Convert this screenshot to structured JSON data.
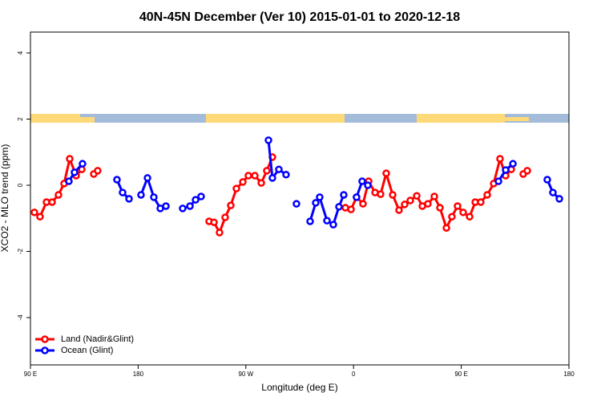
{
  "chart_data": {
    "type": "line",
    "title": "40N-45N December (Ver 10)   2015-01-01 to 2020-12-18",
    "x_label": "Longitude (deg E)",
    "y_label": "XCO2 - MLO trend (ppm)",
    "xlim": [
      90,
      540
    ],
    "ylim": [
      -5.43,
      4.63
    ],
    "xticks": [
      {
        "value": 90,
        "label": "90 E"
      },
      {
        "value": 180,
        "label": "180"
      },
      {
        "value": 270,
        "label": "90 W"
      },
      {
        "value": 360,
        "label": "0"
      },
      {
        "value": 450,
        "label": "90 E"
      },
      {
        "value": 540,
        "label": "180"
      }
    ],
    "yticks": [
      -4,
      -2,
      0,
      2,
      4
    ],
    "legend": "bottom-left",
    "series": [
      {
        "name": "Land (Nadir&Glint)",
        "color": "#ff0000",
        "x": [
          93.3,
          98.0,
          103.4,
          108.1,
          113.4,
          118.1,
          122.8,
          128.2,
          132.9,
          null,
          142.9,
          146.2,
          null,
          239.3,
          243.4,
          248.0,
          252.7,
          257.4,
          262.1,
          267.5,
          272.1,
          277.5,
          282.9,
          287.5,
          292.2,
          null,
          353.2,
          357.9,
          362.5,
          367.9,
          372.6,
          378.0,
          382.6,
          387.3,
          392.7,
          398.0,
          402.7,
          407.4,
          412.8,
          417.5,
          422.1,
          427.5,
          432.2,
          437.6,
          442.2,
          446.9,
          451.6,
          457.0,
          461.7,
          466.3,
          471.7,
          477.1,
          482.4,
          487.1,
          491.8,
          null,
          501.8,
          505.2
        ],
        "values": [
          -0.82,
          -0.95,
          -0.51,
          -0.51,
          -0.29,
          0.05,
          0.8,
          0.29,
          0.48,
          null,
          0.34,
          0.44,
          null,
          -1.09,
          -1.12,
          -1.43,
          -0.97,
          -0.61,
          -0.1,
          0.1,
          0.29,
          0.29,
          0.07,
          0.44,
          0.85,
          null,
          -0.68,
          -0.73,
          -0.36,
          -0.56,
          0.12,
          -0.22,
          -0.27,
          0.36,
          -0.29,
          -0.75,
          -0.58,
          -0.46,
          -0.32,
          -0.63,
          -0.56,
          -0.34,
          -0.68,
          -1.29,
          -0.95,
          -0.63,
          -0.82,
          -0.95,
          -0.51,
          -0.51,
          -0.29,
          0.05,
          0.8,
          0.29,
          0.48,
          null,
          0.34,
          0.44
        ]
      },
      {
        "name": "Ocean (Glint)",
        "color": "#0000ff",
        "x": [
          122.1,
          126.8,
          133.5,
          null,
          162.3,
          167.0,
          172.4,
          null,
          182.4,
          187.8,
          193.1,
          198.5,
          203.2,
          null,
          217.2,
          223.3,
          228.0,
          232.6,
          null,
          288.9,
          292.2,
          297.6,
          303.6,
          null,
          312.3,
          null,
          323.7,
          328.4,
          331.7,
          337.8,
          343.1,
          347.8,
          351.8,
          null,
          362.5,
          367.2,
          371.9,
          null,
          481.1,
          487.1,
          493.2,
          null,
          521.9,
          526.6,
          532.0
        ],
        "values": [
          0.12,
          0.39,
          0.65,
          null,
          0.17,
          -0.22,
          -0.41,
          null,
          -0.29,
          0.22,
          -0.36,
          -0.7,
          -0.63,
          null,
          -0.7,
          -0.63,
          -0.44,
          -0.34,
          null,
          1.36,
          0.22,
          0.48,
          0.32,
          null,
          -0.56,
          null,
          -1.09,
          -0.53,
          -0.36,
          -1.07,
          -1.19,
          -0.65,
          -0.29,
          null,
          -0.36,
          0.12,
          0.0,
          null,
          0.12,
          0.46,
          0.65,
          null,
          0.17,
          -0.22,
          -0.41
        ]
      }
    ]
  }
}
